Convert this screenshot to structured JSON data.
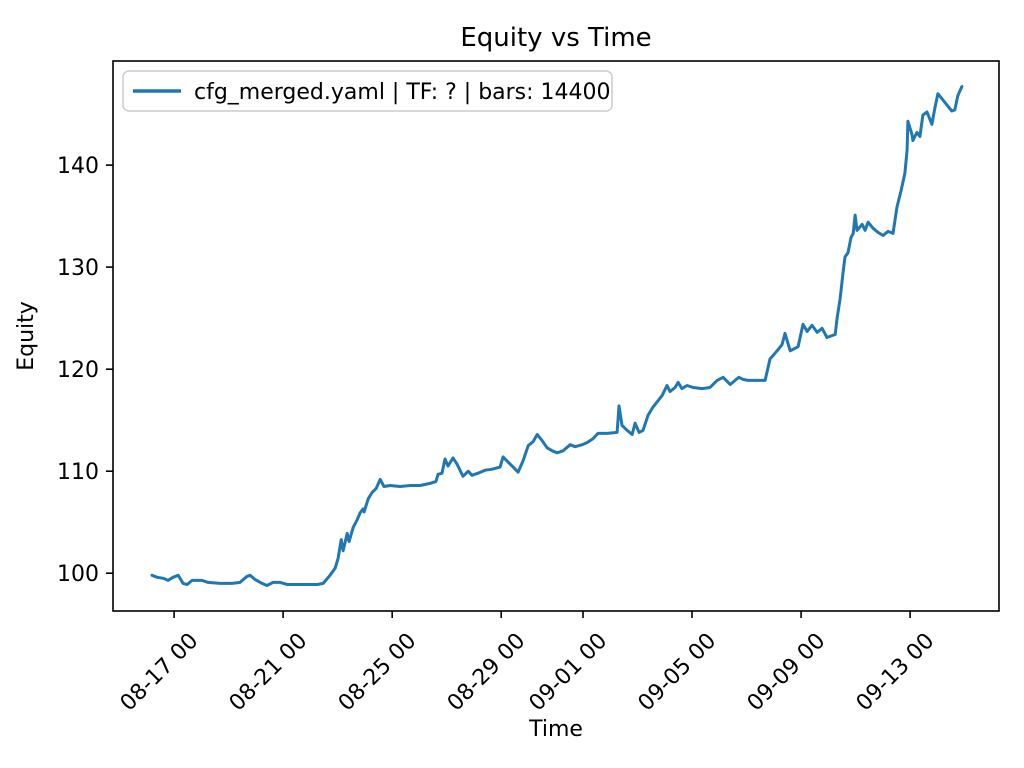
{
  "figure": {
    "background": "#ffffff"
  },
  "chart_data": {
    "type": "line",
    "title": "Equity vs Time",
    "xlabel": "Time",
    "ylabel": "Equity",
    "grid": false,
    "legend_position": "upper left",
    "x_unit": "days since 08-16 00:00",
    "xlim": [
      -1.24,
      31.26
    ],
    "ylim": [
      96.3,
      150.2
    ],
    "y_ticks": [
      100,
      110,
      120,
      130,
      140
    ],
    "x_ticks": [
      {
        "t": 1,
        "label": "08-17 00"
      },
      {
        "t": 5,
        "label": "08-21 00"
      },
      {
        "t": 9,
        "label": "08-25 00"
      },
      {
        "t": 13,
        "label": "08-29 00"
      },
      {
        "t": 16,
        "label": "09-01 00"
      },
      {
        "t": 20,
        "label": "09-05 00"
      },
      {
        "t": 24,
        "label": "09-09 00"
      },
      {
        "t": 28,
        "label": "09-13 00"
      }
    ],
    "series": [
      {
        "name": "cfg_merged.yaml | TF: ? | bars: 14400",
        "color": "#1f77b4",
        "points": [
          [
            0.19,
            99.8
          ],
          [
            0.38,
            99.6
          ],
          [
            0.6,
            99.5
          ],
          [
            0.78,
            99.3
          ],
          [
            0.96,
            99.6
          ],
          [
            1.15,
            99.8
          ],
          [
            1.33,
            99.0
          ],
          [
            1.48,
            98.9
          ],
          [
            1.66,
            99.3
          ],
          [
            2.03,
            99.3
          ],
          [
            2.25,
            99.1
          ],
          [
            2.69,
            99.0
          ],
          [
            3.13,
            99.0
          ],
          [
            3.42,
            99.1
          ],
          [
            3.68,
            99.7
          ],
          [
            3.79,
            99.8
          ],
          [
            3.97,
            99.4
          ],
          [
            4.23,
            99.0
          ],
          [
            4.41,
            98.8
          ],
          [
            4.63,
            99.1
          ],
          [
            4.89,
            99.1
          ],
          [
            5.15,
            98.9
          ],
          [
            5.51,
            98.9
          ],
          [
            5.88,
            98.9
          ],
          [
            6.25,
            98.9
          ],
          [
            6.47,
            99.0
          ],
          [
            6.72,
            99.8
          ],
          [
            6.91,
            100.5
          ],
          [
            7.02,
            101.5
          ],
          [
            7.13,
            103.3
          ],
          [
            7.2,
            102.2
          ],
          [
            7.35,
            103.9
          ],
          [
            7.42,
            103.1
          ],
          [
            7.57,
            104.5
          ],
          [
            7.71,
            105.2
          ],
          [
            7.82,
            105.9
          ],
          [
            7.93,
            106.3
          ],
          [
            7.97,
            106.0
          ],
          [
            8.12,
            107.3
          ],
          [
            8.26,
            107.9
          ],
          [
            8.41,
            108.3
          ],
          [
            8.56,
            109.2
          ],
          [
            8.7,
            108.5
          ],
          [
            8.92,
            108.6
          ],
          [
            9.29,
            108.5
          ],
          [
            9.66,
            108.6
          ],
          [
            10.02,
            108.6
          ],
          [
            10.39,
            108.8
          ],
          [
            10.61,
            109.0
          ],
          [
            10.68,
            109.7
          ],
          [
            10.83,
            109.8
          ],
          [
            10.94,
            111.2
          ],
          [
            11.05,
            110.5
          ],
          [
            11.23,
            111.3
          ],
          [
            11.38,
            110.7
          ],
          [
            11.49,
            110.1
          ],
          [
            11.6,
            109.5
          ],
          [
            11.79,
            110.0
          ],
          [
            11.93,
            109.6
          ],
          [
            12.15,
            109.8
          ],
          [
            12.41,
            110.1
          ],
          [
            12.67,
            110.2
          ],
          [
            12.96,
            110.4
          ],
          [
            13.07,
            111.4
          ],
          [
            13.25,
            110.9
          ],
          [
            13.44,
            110.4
          ],
          [
            13.62,
            109.9
          ],
          [
            13.8,
            111.0
          ],
          [
            13.99,
            112.5
          ],
          [
            14.17,
            112.9
          ],
          [
            14.32,
            113.6
          ],
          [
            14.5,
            113.0
          ],
          [
            14.68,
            112.3
          ],
          [
            14.87,
            112.0
          ],
          [
            15.05,
            111.8
          ],
          [
            15.27,
            112.0
          ],
          [
            15.53,
            112.6
          ],
          [
            15.71,
            112.4
          ],
          [
            15.97,
            112.6
          ],
          [
            16.15,
            112.8
          ],
          [
            16.37,
            113.2
          ],
          [
            16.55,
            113.7
          ],
          [
            16.88,
            113.7
          ],
          [
            17.25,
            113.8
          ],
          [
            17.32,
            116.4
          ],
          [
            17.43,
            114.5
          ],
          [
            17.62,
            114.0
          ],
          [
            17.8,
            113.6
          ],
          [
            17.91,
            114.7
          ],
          [
            18.06,
            113.8
          ],
          [
            18.2,
            114.0
          ],
          [
            18.39,
            115.5
          ],
          [
            18.57,
            116.3
          ],
          [
            18.75,
            116.9
          ],
          [
            18.9,
            117.4
          ],
          [
            19.08,
            118.4
          ],
          [
            19.19,
            117.8
          ],
          [
            19.38,
            118.2
          ],
          [
            19.49,
            118.7
          ],
          [
            19.63,
            118.1
          ],
          [
            19.82,
            118.4
          ],
          [
            20.04,
            118.2
          ],
          [
            20.37,
            118.1
          ],
          [
            20.66,
            118.2
          ],
          [
            20.92,
            118.9
          ],
          [
            21.14,
            119.2
          ],
          [
            21.4,
            118.5
          ],
          [
            21.58,
            118.9
          ],
          [
            21.72,
            119.2
          ],
          [
            21.87,
            119.0
          ],
          [
            22.05,
            118.9
          ],
          [
            22.68,
            118.9
          ],
          [
            22.86,
            121.0
          ],
          [
            23.12,
            121.8
          ],
          [
            23.3,
            122.4
          ],
          [
            23.41,
            123.5
          ],
          [
            23.6,
            121.8
          ],
          [
            23.89,
            122.2
          ],
          [
            24.07,
            124.4
          ],
          [
            24.22,
            123.7
          ],
          [
            24.4,
            124.3
          ],
          [
            24.59,
            123.6
          ],
          [
            24.77,
            124.0
          ],
          [
            24.95,
            123.1
          ],
          [
            25.14,
            123.3
          ],
          [
            25.25,
            123.4
          ],
          [
            25.32,
            125.0
          ],
          [
            25.43,
            126.9
          ],
          [
            25.54,
            129.5
          ],
          [
            25.61,
            131.0
          ],
          [
            25.72,
            131.4
          ],
          [
            25.83,
            132.9
          ],
          [
            25.91,
            133.3
          ],
          [
            25.98,
            135.1
          ],
          [
            26.05,
            133.6
          ],
          [
            26.24,
            134.2
          ],
          [
            26.35,
            133.6
          ],
          [
            26.46,
            134.4
          ],
          [
            26.64,
            133.8
          ],
          [
            26.82,
            133.4
          ],
          [
            27.01,
            133.1
          ],
          [
            27.19,
            133.5
          ],
          [
            27.37,
            133.3
          ],
          [
            27.52,
            135.9
          ],
          [
            27.67,
            137.5
          ],
          [
            27.81,
            139.2
          ],
          [
            27.89,
            141.5
          ],
          [
            27.92,
            144.3
          ],
          [
            28.07,
            143.0
          ],
          [
            28.1,
            142.4
          ],
          [
            28.25,
            143.2
          ],
          [
            28.36,
            142.8
          ],
          [
            28.47,
            144.9
          ],
          [
            28.62,
            145.2
          ],
          [
            28.8,
            144.0
          ],
          [
            28.91,
            145.6
          ],
          [
            29.02,
            147.0
          ],
          [
            29.17,
            146.5
          ],
          [
            29.35,
            145.9
          ],
          [
            29.53,
            145.3
          ],
          [
            29.64,
            145.4
          ],
          [
            29.75,
            146.8
          ],
          [
            29.9,
            147.7
          ]
        ]
      }
    ]
  }
}
